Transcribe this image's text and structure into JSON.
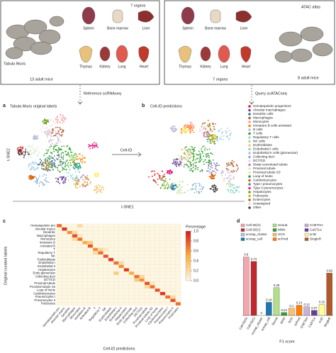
{
  "top": {
    "left": {
      "title": "Tabula Muris",
      "mice": "13 adult mice",
      "organs_label": "7 organs"
    },
    "right": {
      "title": "ATAC atlas",
      "mice": "8 adult mice",
      "organs_label": "7 organs"
    },
    "organs": [
      "Spleen",
      "Bone marrow",
      "Liver",
      "Thymus",
      "Kidney",
      "Lung",
      "Heart"
    ]
  },
  "arrows": {
    "reference": "Reference scRNAseq",
    "query": "Query scATACseq",
    "cellid": "Cell-ID"
  },
  "panel_a": {
    "letter": "a",
    "title": "Tabula Muris original labels",
    "ylabel": "t-SNE2"
  },
  "panel_b": {
    "letter": "b",
    "title": "Cell-ID predictions"
  },
  "xlabel": "t-SNE1",
  "legend": [
    {
      "name": "Hematopoietic progenitors",
      "color": "#e31a1c"
    },
    {
      "name": "Alveolar macrophages",
      "color": "#6a3d9a"
    },
    {
      "name": "Dendritic cells",
      "color": "#1f78b4"
    },
    {
      "name": "Macrophages",
      "color": "#b15928"
    },
    {
      "name": "Monocytes",
      "color": "#fb9a99"
    },
    {
      "name": "Immature B cells activated",
      "color": "#ff7f00"
    },
    {
      "name": "B cells",
      "color": "#cab2d6"
    },
    {
      "name": "T cells",
      "color": "#33a02c"
    },
    {
      "name": "Regulatory T cells",
      "color": "#a6cee3"
    },
    {
      "name": "NK cells",
      "color": "#b2df8a"
    },
    {
      "name": "Erythroblasts",
      "color": "#fdbf6f"
    },
    {
      "name": "Endothelial I cells",
      "color": "#8dd3c7"
    },
    {
      "name": "Endothelial II cells (glomerular)",
      "color": "#bebada"
    },
    {
      "name": "Collecting duct",
      "color": "#80b1d3"
    },
    {
      "name": "DCT/CD",
      "color": "#fccde5"
    },
    {
      "name": "Distal convoluted tubule",
      "color": "#bc80bd"
    },
    {
      "name": "Proximal tubule",
      "color": "#ccebc5"
    },
    {
      "name": "Proximal tubule S3",
      "color": "#ffed6f"
    },
    {
      "name": "Loop of henle",
      "color": "#1b9e77"
    },
    {
      "name": "Cardiomyocytes",
      "color": "#d95f02"
    },
    {
      "name": "Type I pneumocytes",
      "color": "#7570b3"
    },
    {
      "name": "Type II pneumocytes",
      "color": "#e7298a"
    },
    {
      "name": "Hepatocytes",
      "color": "#66a61e"
    },
    {
      "name": "Podocytes",
      "color": "#e6ab02"
    },
    {
      "name": "Enterocytes",
      "color": "#a6761d"
    },
    {
      "name": "Unassigned",
      "color": "#d9d9d9"
    },
    {
      "name": "Other",
      "color": "#444444"
    }
  ],
  "panel_c": {
    "letter": "c",
    "rows": [
      "Hematopoietic pro",
      "Alveolar macro",
      "Dendritic",
      "Macrophages",
      "Monocytes",
      "Immature B",
      "Activated B",
      "T",
      "Regulatory T",
      "NK",
      "Erythroblasts",
      "Endothelial I",
      "Endothelial II",
      "Hepatocytes",
      "Endo glomerular",
      "Collecting duct",
      "DCT/CD",
      "Proximal tubule",
      "Proximal tubule S3",
      "Loop of henle",
      "Cardiomyocytes",
      "Pneumocytes I",
      "Pneumocytes II",
      "Podocytes"
    ],
    "cols": [
      "Hematopoietic pro",
      "Alveolar macro",
      "Dendritic",
      "Macrophages",
      "Monocytes",
      "Immature B",
      "Activated B",
      "T",
      "Regulatory T",
      "NK",
      "Erythroblasts",
      "Endothelial I",
      "Endothelial II",
      "Hepatocytes",
      "Endo glomerular",
      "Collecting duct",
      "DCT/CD",
      "Proximal tubule",
      "Proximal tubule S3",
      "Loop of henle",
      "Cardiomyocytes",
      "Pneumocytes I",
      "Pneumocytes II",
      "Podocytes"
    ],
    "values": [
      [
        0.7,
        0,
        0,
        0,
        0.2,
        0,
        0,
        0,
        0,
        0,
        0,
        0,
        0,
        0,
        0,
        0,
        0,
        0,
        0,
        0,
        0,
        0,
        0,
        0
      ],
      [
        0,
        0.9,
        0,
        0,
        0,
        0,
        0,
        0,
        0,
        0,
        0,
        0,
        0,
        0,
        0,
        0,
        0,
        0,
        0,
        0,
        0,
        0,
        0,
        0
      ],
      [
        0,
        0,
        0.6,
        0.2,
        0,
        0,
        0,
        0,
        0,
        0,
        0,
        0,
        0,
        0,
        0,
        0,
        0,
        0,
        0,
        0,
        0,
        0,
        0,
        0
      ],
      [
        0,
        0,
        0,
        0.8,
        0.1,
        0,
        0,
        0,
        0,
        0,
        0,
        0,
        0,
        0,
        0,
        0,
        0,
        0,
        0,
        0,
        0,
        0,
        0,
        0
      ],
      [
        0,
        0,
        0,
        0.2,
        0.7,
        0,
        0,
        0,
        0,
        0,
        0,
        0,
        0,
        0,
        0,
        0,
        0,
        0,
        0,
        0,
        0,
        0,
        0,
        0
      ],
      [
        0,
        0,
        0,
        0,
        0,
        0.5,
        0.3,
        0,
        0,
        0,
        0,
        0,
        0,
        0,
        0,
        0,
        0,
        0,
        0,
        0,
        0,
        0,
        0,
        0
      ],
      [
        0,
        0,
        0,
        0,
        0,
        0,
        0.8,
        0,
        0,
        0,
        0,
        0,
        0,
        0,
        0,
        0,
        0,
        0,
        0,
        0,
        0,
        0,
        0,
        0
      ],
      [
        0,
        0,
        0,
        0,
        0,
        0,
        0,
        0.6,
        0.2,
        0.1,
        0,
        0,
        0,
        0,
        0,
        0,
        0,
        0,
        0,
        0,
        0,
        0,
        0,
        0
      ],
      [
        0,
        0,
        0,
        0,
        0,
        0,
        0,
        0.2,
        0.7,
        0,
        0,
        0,
        0,
        0,
        0,
        0,
        0,
        0,
        0,
        0,
        0,
        0,
        0,
        0
      ],
      [
        0,
        0,
        0,
        0,
        0,
        0,
        0,
        0,
        0,
        0.8,
        0,
        0,
        0,
        0,
        0,
        0,
        0,
        0,
        0,
        0,
        0,
        0,
        0,
        0
      ],
      [
        0,
        0,
        0,
        0,
        0,
        0,
        0,
        0,
        0,
        0,
        0.9,
        0,
        0,
        0,
        0,
        0,
        0,
        0,
        0,
        0,
        0,
        0,
        0,
        0
      ],
      [
        0,
        0,
        0,
        0,
        0,
        0,
        0,
        0,
        0,
        0,
        0,
        0.7,
        0.2,
        0,
        0,
        0,
        0,
        0,
        0,
        0,
        0,
        0,
        0,
        0
      ],
      [
        0,
        0,
        0,
        0,
        0,
        0,
        0,
        0,
        0,
        0,
        0,
        0,
        0.6,
        0,
        0,
        0,
        0,
        0,
        0,
        0,
        0,
        0,
        0,
        0
      ],
      [
        0,
        0,
        0,
        0,
        0,
        0,
        0,
        0,
        0,
        0,
        0,
        0,
        0,
        0.9,
        0,
        0,
        0,
        0,
        0,
        0,
        0,
        0,
        0,
        0
      ],
      [
        0,
        0,
        0,
        0,
        0,
        0,
        0,
        0,
        0,
        0,
        0,
        0.3,
        0,
        0,
        0.5,
        0,
        0,
        0,
        0,
        0,
        0,
        0,
        0,
        0
      ],
      [
        0,
        0,
        0,
        0,
        0,
        0,
        0,
        0,
        0,
        0,
        0,
        0,
        0,
        0,
        0,
        0.7,
        0.2,
        0,
        0,
        0,
        0,
        0,
        0,
        0
      ],
      [
        0,
        0,
        0,
        0,
        0,
        0,
        0,
        0,
        0,
        0,
        0,
        0,
        0,
        0,
        0,
        0.3,
        0.6,
        0,
        0,
        0,
        0,
        0,
        0,
        0
      ],
      [
        0,
        0,
        0,
        0,
        0,
        0,
        0,
        0,
        0,
        0,
        0,
        0,
        0,
        0,
        0,
        0,
        0,
        0.8,
        0.1,
        0,
        0,
        0,
        0,
        0
      ],
      [
        0,
        0,
        0,
        0,
        0,
        0,
        0,
        0,
        0,
        0,
        0,
        0,
        0,
        0,
        0,
        0,
        0,
        0.2,
        0.7,
        0,
        0,
        0,
        0,
        0
      ],
      [
        0,
        0,
        0,
        0,
        0,
        0,
        0,
        0,
        0,
        0,
        0,
        0,
        0,
        0,
        0,
        0,
        0,
        0,
        0,
        0.8,
        0,
        0,
        0,
        0
      ],
      [
        0,
        0,
        0,
        0,
        0,
        0,
        0,
        0,
        0,
        0,
        0,
        0,
        0,
        0,
        0,
        0,
        0,
        0,
        0,
        0,
        0.9,
        0,
        0,
        0
      ],
      [
        0,
        0,
        0,
        0,
        0,
        0,
        0,
        0,
        0,
        0,
        0,
        0,
        0,
        0,
        0,
        0,
        0,
        0,
        0,
        0,
        0,
        0.7,
        0.2,
        0
      ],
      [
        0,
        0,
        0,
        0,
        0,
        0,
        0,
        0,
        0,
        0,
        0,
        0,
        0,
        0,
        0,
        0,
        0,
        0,
        0,
        0,
        0,
        0,
        0.8,
        0
      ],
      [
        0,
        0,
        0,
        0,
        0,
        0,
        0,
        0,
        0,
        0,
        0,
        0,
        0,
        0,
        0,
        0,
        0,
        0,
        0,
        0,
        0,
        0,
        0,
        0.7
      ]
    ],
    "colorbar": {
      "title": "Percentage",
      "lim": [
        0,
        1
      ],
      "ticks": [
        {
          "value": 0,
          "label": "0.0"
        },
        0.2,
        0.4,
        0.6,
        0.8,
        {
          "value": 1,
          "label": "1.0"
        }
      ]
    },
    "xlabel": "Cell-ID predictions",
    "ylabel": "Original curated labels"
  },
  "panel_d": {
    "letter": "d",
    "type": "bar",
    "xlabel": "F1 score",
    "ylim": [
      0,
      1
    ],
    "categories": [
      "Cell-ID(G)",
      "Cell-ID(C)",
      "scmap_cluster",
      "scmap_cell",
      "Seurat",
      "MNN",
      "SCN",
      "scPred",
      "CHETAH",
      "CaSTLe",
      "scID",
      "SingleR"
    ],
    "colors": [
      "#f4a6b0",
      "#c0282d",
      "#a6cee3",
      "#1f78b4",
      "#b2df8a",
      "#33a02c",
      "#fdbf6f",
      "#ff7f00",
      "#cab2d6",
      "#6a3d9a",
      "#ffff99",
      "#b15928"
    ],
    "values": [
      0.8,
      0.74,
      0,
      0.18,
      0.38,
      0.04,
      0.1,
      0.14,
      0.12,
      0.07,
      0.15,
      0.58
    ]
  }
}
